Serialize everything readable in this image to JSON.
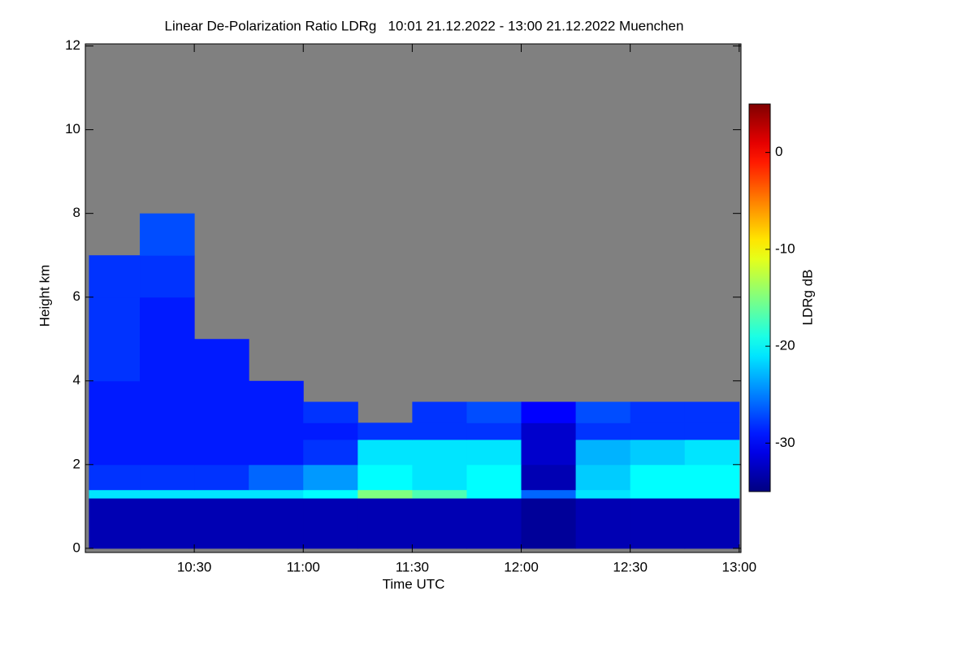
{
  "chart_data": {
    "type": "heatmap",
    "title": "Linear De-Polarization Ratio LDRg   10:01 21.12.2022 - 13:00 21.12.2022 Muenchen",
    "x_label": "Time UTC",
    "y_label": "Height km",
    "colorbar_label": "LDRg dB",
    "colormap": "jet",
    "missing_color": "#808080",
    "xlim": [
      600,
      780.5
    ],
    "xticks": [
      {
        "value": 630,
        "label": "10:30"
      },
      {
        "value": 660,
        "label": "11:00"
      },
      {
        "value": 690,
        "label": "11:30"
      },
      {
        "value": 720,
        "label": "12:00"
      },
      {
        "value": 750,
        "label": "12:30"
      },
      {
        "value": 780,
        "label": "13:00"
      }
    ],
    "ylim": [
      -0.1,
      12.05
    ],
    "yticks": [
      0,
      2,
      4,
      6,
      8,
      10,
      12
    ],
    "clim": [
      -35,
      5
    ],
    "cticks": [
      0,
      -10,
      -20,
      -30
    ],
    "xbins": [
      601,
      615,
      630,
      645,
      660,
      675,
      690,
      705,
      720,
      735,
      750,
      765,
      780
    ],
    "ybins": [
      0,
      1.2,
      1.4,
      2,
      2.6,
      3,
      3.5,
      4,
      5,
      6,
      7,
      8,
      12
    ],
    "z": [
      [
        -33,
        -33,
        -33,
        -33,
        -33,
        -33,
        -33,
        -33,
        -34,
        -33,
        -33,
        -33
      ],
      [
        -21,
        -21,
        -21,
        -21,
        -20,
        -15,
        -17,
        -20,
        -26,
        -21,
        -20,
        -20
      ],
      [
        -28,
        -28,
        -28,
        -26,
        -24,
        -20,
        -21,
        -20,
        -33,
        -22,
        -20,
        -20
      ],
      [
        -29,
        -29,
        -29,
        -29,
        -28,
        -21,
        -21,
        -21,
        -32,
        -23,
        -22,
        -21
      ],
      [
        -29,
        -29,
        -29,
        -29,
        -29,
        -28,
        -28,
        -28,
        -32,
        -28,
        -28,
        -28
      ],
      [
        -29,
        -29,
        -29,
        -29,
        -28,
        null,
        -28,
        -27,
        -30,
        -27,
        -28,
        -28
      ],
      [
        -29,
        -29,
        -29,
        -29,
        null,
        null,
        null,
        null,
        null,
        null,
        null,
        null
      ],
      [
        -28,
        -29,
        -29,
        null,
        null,
        null,
        null,
        null,
        null,
        null,
        null,
        null
      ],
      [
        -28,
        -29,
        null,
        null,
        null,
        null,
        null,
        null,
        null,
        null,
        null,
        null
      ],
      [
        -28,
        -28,
        null,
        null,
        null,
        null,
        null,
        null,
        null,
        null,
        null,
        null
      ],
      [
        null,
        -27,
        null,
        null,
        null,
        null,
        null,
        null,
        null,
        null,
        null,
        null
      ],
      [
        null,
        null,
        null,
        null,
        null,
        null,
        null,
        null,
        null,
        null,
        null,
        null
      ]
    ]
  }
}
